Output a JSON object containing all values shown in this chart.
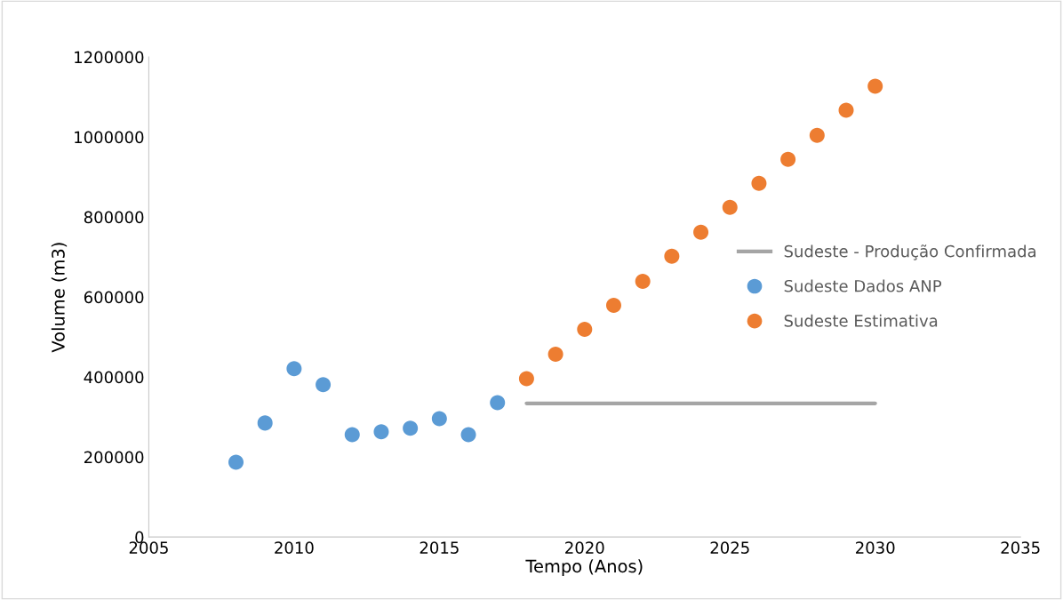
{
  "chart_data": {
    "type": "scatter",
    "xlabel": "Tempo (Anos)",
    "ylabel": "Volume (m3)",
    "xlim": [
      2005,
      2035
    ],
    "xticks": [
      2005,
      2010,
      2015,
      2020,
      2025,
      2030,
      2035
    ],
    "ylim": [
      0,
      1200000
    ],
    "yticks": [
      0,
      200000,
      400000,
      600000,
      800000,
      1000000,
      1200000
    ],
    "grid": false,
    "legend": "right",
    "marker": "circle",
    "series": [
      {
        "name": "Sudeste - Produção Confirmada",
        "type": "line",
        "marker": "none",
        "color": "#a5a5a5",
        "x": [
          2018,
          2030
        ],
        "values": [
          334000,
          334000
        ]
      },
      {
        "name": "Sudeste Dados ANP",
        "color": "#5b9bd5",
        "x": [
          2008,
          2009,
          2010,
          2011,
          2012,
          2013,
          2014,
          2015,
          2016,
          2017
        ],
        "values": [
          187000,
          285000,
          421000,
          381000,
          256000,
          263000,
          272000,
          296000,
          256000,
          336000
        ]
      },
      {
        "name": "Sudeste Estimativa",
        "color": "#ed7d31",
        "x": [
          2018,
          2019,
          2020,
          2021,
          2022,
          2023,
          2024,
          2025,
          2026,
          2027,
          2028,
          2029,
          2030
        ],
        "values": [
          396000,
          457000,
          519000,
          579000,
          639000,
          702000,
          762000,
          824000,
          884000,
          944000,
          1004000,
          1067000,
          1127000
        ]
      }
    ]
  }
}
